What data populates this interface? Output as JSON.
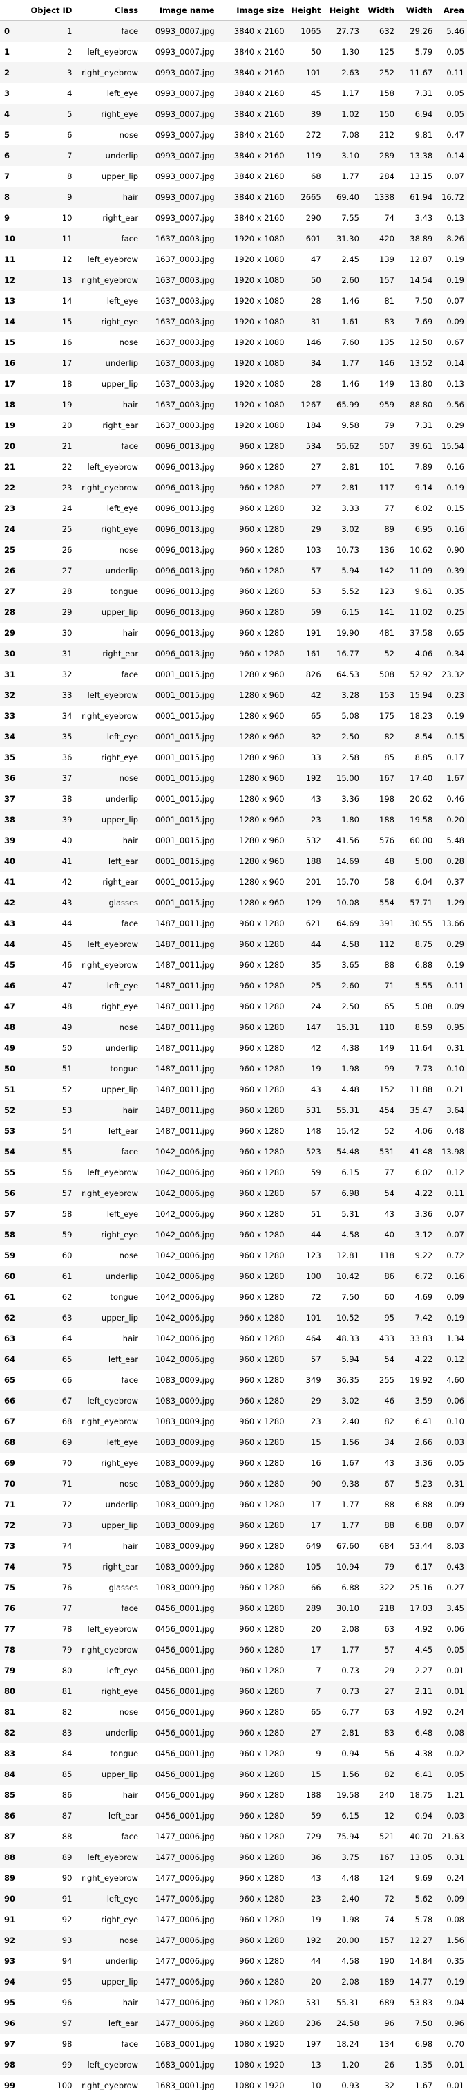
{
  "table": {
    "headers": [
      "",
      "Object ID",
      "Class",
      "Image name",
      "Image size",
      "Height",
      "Height",
      "Width",
      "Width",
      "Area"
    ],
    "rows": [
      [
        "0",
        "1",
        "face",
        "0993_0007.jpg",
        "3840 x 2160",
        "1065",
        "27.73",
        "632",
        "29.26",
        "5.46"
      ],
      [
        "1",
        "2",
        "left_eyebrow",
        "0993_0007.jpg",
        "3840 x 2160",
        "50",
        "1.30",
        "125",
        "5.79",
        "0.05"
      ],
      [
        "2",
        "3",
        "right_eyebrow",
        "0993_0007.jpg",
        "3840 x 2160",
        "101",
        "2.63",
        "252",
        "11.67",
        "0.11"
      ],
      [
        "3",
        "4",
        "left_eye",
        "0993_0007.jpg",
        "3840 x 2160",
        "45",
        "1.17",
        "158",
        "7.31",
        "0.05"
      ],
      [
        "4",
        "5",
        "right_eye",
        "0993_0007.jpg",
        "3840 x 2160",
        "39",
        "1.02",
        "150",
        "6.94",
        "0.05"
      ],
      [
        "5",
        "6",
        "nose",
        "0993_0007.jpg",
        "3840 x 2160",
        "272",
        "7.08",
        "212",
        "9.81",
        "0.47"
      ],
      [
        "6",
        "7",
        "underlip",
        "0993_0007.jpg",
        "3840 x 2160",
        "119",
        "3.10",
        "289",
        "13.38",
        "0.14"
      ],
      [
        "7",
        "8",
        "upper_lip",
        "0993_0007.jpg",
        "3840 x 2160",
        "68",
        "1.77",
        "284",
        "13.15",
        "0.07"
      ],
      [
        "8",
        "9",
        "hair",
        "0993_0007.jpg",
        "3840 x 2160",
        "2665",
        "69.40",
        "1338",
        "61.94",
        "16.72"
      ],
      [
        "9",
        "10",
        "right_ear",
        "0993_0007.jpg",
        "3840 x 2160",
        "290",
        "7.55",
        "74",
        "3.43",
        "0.13"
      ],
      [
        "10",
        "11",
        "face",
        "1637_0003.jpg",
        "1920 x 1080",
        "601",
        "31.30",
        "420",
        "38.89",
        "8.26"
      ],
      [
        "11",
        "12",
        "left_eyebrow",
        "1637_0003.jpg",
        "1920 x 1080",
        "47",
        "2.45",
        "139",
        "12.87",
        "0.19"
      ],
      [
        "12",
        "13",
        "right_eyebrow",
        "1637_0003.jpg",
        "1920 x 1080",
        "50",
        "2.60",
        "157",
        "14.54",
        "0.19"
      ],
      [
        "13",
        "14",
        "left_eye",
        "1637_0003.jpg",
        "1920 x 1080",
        "28",
        "1.46",
        "81",
        "7.50",
        "0.07"
      ],
      [
        "14",
        "15",
        "right_eye",
        "1637_0003.jpg",
        "1920 x 1080",
        "31",
        "1.61",
        "83",
        "7.69",
        "0.09"
      ],
      [
        "15",
        "16",
        "nose",
        "1637_0003.jpg",
        "1920 x 1080",
        "146",
        "7.60",
        "135",
        "12.50",
        "0.67"
      ],
      [
        "16",
        "17",
        "underlip",
        "1637_0003.jpg",
        "1920 x 1080",
        "34",
        "1.77",
        "146",
        "13.52",
        "0.14"
      ],
      [
        "17",
        "18",
        "upper_lip",
        "1637_0003.jpg",
        "1920 x 1080",
        "28",
        "1.46",
        "149",
        "13.80",
        "0.13"
      ],
      [
        "18",
        "19",
        "hair",
        "1637_0003.jpg",
        "1920 x 1080",
        "1267",
        "65.99",
        "959",
        "88.80",
        "9.56"
      ],
      [
        "19",
        "20",
        "right_ear",
        "1637_0003.jpg",
        "1920 x 1080",
        "184",
        "9.58",
        "79",
        "7.31",
        "0.29"
      ],
      [
        "20",
        "21",
        "face",
        "0096_0013.jpg",
        "960 x 1280",
        "534",
        "55.62",
        "507",
        "39.61",
        "15.54"
      ],
      [
        "21",
        "22",
        "left_eyebrow",
        "0096_0013.jpg",
        "960 x 1280",
        "27",
        "2.81",
        "101",
        "7.89",
        "0.16"
      ],
      [
        "22",
        "23",
        "right_eyebrow",
        "0096_0013.jpg",
        "960 x 1280",
        "27",
        "2.81",
        "117",
        "9.14",
        "0.19"
      ],
      [
        "23",
        "24",
        "left_eye",
        "0096_0013.jpg",
        "960 x 1280",
        "32",
        "3.33",
        "77",
        "6.02",
        "0.15"
      ],
      [
        "24",
        "25",
        "right_eye",
        "0096_0013.jpg",
        "960 x 1280",
        "29",
        "3.02",
        "89",
        "6.95",
        "0.16"
      ],
      [
        "25",
        "26",
        "nose",
        "0096_0013.jpg",
        "960 x 1280",
        "103",
        "10.73",
        "136",
        "10.62",
        "0.90"
      ],
      [
        "26",
        "27",
        "underlip",
        "0096_0013.jpg",
        "960 x 1280",
        "57",
        "5.94",
        "142",
        "11.09",
        "0.39"
      ],
      [
        "27",
        "28",
        "tongue",
        "0096_0013.jpg",
        "960 x 1280",
        "53",
        "5.52",
        "123",
        "9.61",
        "0.35"
      ],
      [
        "28",
        "29",
        "upper_lip",
        "0096_0013.jpg",
        "960 x 1280",
        "59",
        "6.15",
        "141",
        "11.02",
        "0.25"
      ],
      [
        "29",
        "30",
        "hair",
        "0096_0013.jpg",
        "960 x 1280",
        "191",
        "19.90",
        "481",
        "37.58",
        "0.65"
      ],
      [
        "30",
        "31",
        "right_ear",
        "0096_0013.jpg",
        "960 x 1280",
        "161",
        "16.77",
        "52",
        "4.06",
        "0.34"
      ],
      [
        "31",
        "32",
        "face",
        "0001_0015.jpg",
        "1280 x 960",
        "826",
        "64.53",
        "508",
        "52.92",
        "23.32"
      ],
      [
        "32",
        "33",
        "left_eyebrow",
        "0001_0015.jpg",
        "1280 x 960",
        "42",
        "3.28",
        "153",
        "15.94",
        "0.23"
      ],
      [
        "33",
        "34",
        "right_eyebrow",
        "0001_0015.jpg",
        "1280 x 960",
        "65",
        "5.08",
        "175",
        "18.23",
        "0.19"
      ],
      [
        "34",
        "35",
        "left_eye",
        "0001_0015.jpg",
        "1280 x 960",
        "32",
        "2.50",
        "82",
        "8.54",
        "0.15"
      ],
      [
        "35",
        "36",
        "right_eye",
        "0001_0015.jpg",
        "1280 x 960",
        "33",
        "2.58",
        "85",
        "8.85",
        "0.17"
      ],
      [
        "36",
        "37",
        "nose",
        "0001_0015.jpg",
        "1280 x 960",
        "192",
        "15.00",
        "167",
        "17.40",
        "1.67"
      ],
      [
        "37",
        "38",
        "underlip",
        "0001_0015.jpg",
        "1280 x 960",
        "43",
        "3.36",
        "198",
        "20.62",
        "0.46"
      ],
      [
        "38",
        "39",
        "upper_lip",
        "0001_0015.jpg",
        "1280 x 960",
        "23",
        "1.80",
        "188",
        "19.58",
        "0.20"
      ],
      [
        "39",
        "40",
        "hair",
        "0001_0015.jpg",
        "1280 x 960",
        "532",
        "41.56",
        "576",
        "60.00",
        "5.48"
      ],
      [
        "40",
        "41",
        "left_ear",
        "0001_0015.jpg",
        "1280 x 960",
        "188",
        "14.69",
        "48",
        "5.00",
        "0.28"
      ],
      [
        "41",
        "42",
        "right_ear",
        "0001_0015.jpg",
        "1280 x 960",
        "201",
        "15.70",
        "58",
        "6.04",
        "0.37"
      ],
      [
        "42",
        "43",
        "glasses",
        "0001_0015.jpg",
        "1280 x 960",
        "129",
        "10.08",
        "554",
        "57.71",
        "1.29"
      ],
      [
        "43",
        "44",
        "face",
        "1487_0011.jpg",
        "960 x 1280",
        "621",
        "64.69",
        "391",
        "30.55",
        "13.66"
      ],
      [
        "44",
        "45",
        "left_eyebrow",
        "1487_0011.jpg",
        "960 x 1280",
        "44",
        "4.58",
        "112",
        "8.75",
        "0.29"
      ],
      [
        "45",
        "46",
        "right_eyebrow",
        "1487_0011.jpg",
        "960 x 1280",
        "35",
        "3.65",
        "88",
        "6.88",
        "0.19"
      ],
      [
        "46",
        "47",
        "left_eye",
        "1487_0011.jpg",
        "960 x 1280",
        "25",
        "2.60",
        "71",
        "5.55",
        "0.11"
      ],
      [
        "47",
        "48",
        "right_eye",
        "1487_0011.jpg",
        "960 x 1280",
        "24",
        "2.50",
        "65",
        "5.08",
        "0.09"
      ],
      [
        "48",
        "49",
        "nose",
        "1487_0011.jpg",
        "960 x 1280",
        "147",
        "15.31",
        "110",
        "8.59",
        "0.95"
      ],
      [
        "49",
        "50",
        "underlip",
        "1487_0011.jpg",
        "960 x 1280",
        "42",
        "4.38",
        "149",
        "11.64",
        "0.31"
      ],
      [
        "50",
        "51",
        "tongue",
        "1487_0011.jpg",
        "960 x 1280",
        "19",
        "1.98",
        "99",
        "7.73",
        "0.10"
      ],
      [
        "51",
        "52",
        "upper_lip",
        "1487_0011.jpg",
        "960 x 1280",
        "43",
        "4.48",
        "152",
        "11.88",
        "0.21"
      ],
      [
        "52",
        "53",
        "hair",
        "1487_0011.jpg",
        "960 x 1280",
        "531",
        "55.31",
        "454",
        "35.47",
        "3.64"
      ],
      [
        "53",
        "54",
        "left_ear",
        "1487_0011.jpg",
        "960 x 1280",
        "148",
        "15.42",
        "52",
        "4.06",
        "0.48"
      ],
      [
        "54",
        "55",
        "face",
        "1042_0006.jpg",
        "960 x 1280",
        "523",
        "54.48",
        "531",
        "41.48",
        "13.98"
      ],
      [
        "55",
        "56",
        "left_eyebrow",
        "1042_0006.jpg",
        "960 x 1280",
        "59",
        "6.15",
        "77",
        "6.02",
        "0.12"
      ],
      [
        "56",
        "57",
        "right_eyebrow",
        "1042_0006.jpg",
        "960 x 1280",
        "67",
        "6.98",
        "54",
        "4.22",
        "0.11"
      ],
      [
        "57",
        "58",
        "left_eye",
        "1042_0006.jpg",
        "960 x 1280",
        "51",
        "5.31",
        "43",
        "3.36",
        "0.07"
      ],
      [
        "58",
        "59",
        "right_eye",
        "1042_0006.jpg",
        "960 x 1280",
        "44",
        "4.58",
        "40",
        "3.12",
        "0.07"
      ],
      [
        "59",
        "60",
        "nose",
        "1042_0006.jpg",
        "960 x 1280",
        "123",
        "12.81",
        "118",
        "9.22",
        "0.72"
      ],
      [
        "60",
        "61",
        "underlip",
        "1042_0006.jpg",
        "960 x 1280",
        "100",
        "10.42",
        "86",
        "6.72",
        "0.16"
      ],
      [
        "61",
        "62",
        "tongue",
        "1042_0006.jpg",
        "960 x 1280",
        "72",
        "7.50",
        "60",
        "4.69",
        "0.09"
      ],
      [
        "62",
        "63",
        "upper_lip",
        "1042_0006.jpg",
        "960 x 1280",
        "101",
        "10.52",
        "95",
        "7.42",
        "0.19"
      ],
      [
        "63",
        "64",
        "hair",
        "1042_0006.jpg",
        "960 x 1280",
        "464",
        "48.33",
        "433",
        "33.83",
        "1.34"
      ],
      [
        "64",
        "65",
        "left_ear",
        "1042_0006.jpg",
        "960 x 1280",
        "57",
        "5.94",
        "54",
        "4.22",
        "0.12"
      ],
      [
        "65",
        "66",
        "face",
        "1083_0009.jpg",
        "960 x 1280",
        "349",
        "36.35",
        "255",
        "19.92",
        "4.60"
      ],
      [
        "66",
        "67",
        "left_eyebrow",
        "1083_0009.jpg",
        "960 x 1280",
        "29",
        "3.02",
        "46",
        "3.59",
        "0.06"
      ],
      [
        "67",
        "68",
        "right_eyebrow",
        "1083_0009.jpg",
        "960 x 1280",
        "23",
        "2.40",
        "82",
        "6.41",
        "0.10"
      ],
      [
        "68",
        "69",
        "left_eye",
        "1083_0009.jpg",
        "960 x 1280",
        "15",
        "1.56",
        "34",
        "2.66",
        "0.03"
      ],
      [
        "69",
        "70",
        "right_eye",
        "1083_0009.jpg",
        "960 x 1280",
        "16",
        "1.67",
        "43",
        "3.36",
        "0.05"
      ],
      [
        "70",
        "71",
        "nose",
        "1083_0009.jpg",
        "960 x 1280",
        "90",
        "9.38",
        "67",
        "5.23",
        "0.31"
      ],
      [
        "71",
        "72",
        "underlip",
        "1083_0009.jpg",
        "960 x 1280",
        "17",
        "1.77",
        "88",
        "6.88",
        "0.09"
      ],
      [
        "72",
        "73",
        "upper_lip",
        "1083_0009.jpg",
        "960 x 1280",
        "17",
        "1.77",
        "88",
        "6.88",
        "0.07"
      ],
      [
        "73",
        "74",
        "hair",
        "1083_0009.jpg",
        "960 x 1280",
        "649",
        "67.60",
        "684",
        "53.44",
        "8.03"
      ],
      [
        "74",
        "75",
        "right_ear",
        "1083_0009.jpg",
        "960 x 1280",
        "105",
        "10.94",
        "79",
        "6.17",
        "0.43"
      ],
      [
        "75",
        "76",
        "glasses",
        "1083_0009.jpg",
        "960 x 1280",
        "66",
        "6.88",
        "322",
        "25.16",
        "0.27"
      ],
      [
        "76",
        "77",
        "face",
        "0456_0001.jpg",
        "960 x 1280",
        "289",
        "30.10",
        "218",
        "17.03",
        "3.45"
      ],
      [
        "77",
        "78",
        "left_eyebrow",
        "0456_0001.jpg",
        "960 x 1280",
        "20",
        "2.08",
        "63",
        "4.92",
        "0.06"
      ],
      [
        "78",
        "79",
        "right_eyebrow",
        "0456_0001.jpg",
        "960 x 1280",
        "17",
        "1.77",
        "57",
        "4.45",
        "0.05"
      ],
      [
        "79",
        "80",
        "left_eye",
        "0456_0001.jpg",
        "960 x 1280",
        "7",
        "0.73",
        "29",
        "2.27",
        "0.01"
      ],
      [
        "80",
        "81",
        "right_eye",
        "0456_0001.jpg",
        "960 x 1280",
        "7",
        "0.73",
        "27",
        "2.11",
        "0.01"
      ],
      [
        "81",
        "82",
        "nose",
        "0456_0001.jpg",
        "960 x 1280",
        "65",
        "6.77",
        "63",
        "4.92",
        "0.24"
      ],
      [
        "82",
        "83",
        "underlip",
        "0456_0001.jpg",
        "960 x 1280",
        "27",
        "2.81",
        "83",
        "6.48",
        "0.08"
      ],
      [
        "83",
        "84",
        "tongue",
        "0456_0001.jpg",
        "960 x 1280",
        "9",
        "0.94",
        "56",
        "4.38",
        "0.02"
      ],
      [
        "84",
        "85",
        "upper_lip",
        "0456_0001.jpg",
        "960 x 1280",
        "15",
        "1.56",
        "82",
        "6.41",
        "0.05"
      ],
      [
        "85",
        "86",
        "hair",
        "0456_0001.jpg",
        "960 x 1280",
        "188",
        "19.58",
        "240",
        "18.75",
        "1.21"
      ],
      [
        "86",
        "87",
        "left_ear",
        "0456_0001.jpg",
        "960 x 1280",
        "59",
        "6.15",
        "12",
        "0.94",
        "0.03"
      ],
      [
        "87",
        "88",
        "face",
        "1477_0006.jpg",
        "960 x 1280",
        "729",
        "75.94",
        "521",
        "40.70",
        "21.63"
      ],
      [
        "88",
        "89",
        "left_eyebrow",
        "1477_0006.jpg",
        "960 x 1280",
        "36",
        "3.75",
        "167",
        "13.05",
        "0.31"
      ],
      [
        "89",
        "90",
        "right_eyebrow",
        "1477_0006.jpg",
        "960 x 1280",
        "43",
        "4.48",
        "124",
        "9.69",
        "0.24"
      ],
      [
        "90",
        "91",
        "left_eye",
        "1477_0006.jpg",
        "960 x 1280",
        "23",
        "2.40",
        "72",
        "5.62",
        "0.09"
      ],
      [
        "91",
        "92",
        "right_eye",
        "1477_0006.jpg",
        "960 x 1280",
        "19",
        "1.98",
        "74",
        "5.78",
        "0.08"
      ],
      [
        "92",
        "93",
        "nose",
        "1477_0006.jpg",
        "960 x 1280",
        "192",
        "20.00",
        "157",
        "12.27",
        "1.56"
      ],
      [
        "93",
        "94",
        "underlip",
        "1477_0006.jpg",
        "960 x 1280",
        "44",
        "4.58",
        "190",
        "14.84",
        "0.35"
      ],
      [
        "94",
        "95",
        "upper_lip",
        "1477_0006.jpg",
        "960 x 1280",
        "20",
        "2.08",
        "189",
        "14.77",
        "0.19"
      ],
      [
        "95",
        "96",
        "hair",
        "1477_0006.jpg",
        "960 x 1280",
        "531",
        "55.31",
        "689",
        "53.83",
        "9.04"
      ],
      [
        "96",
        "97",
        "left_ear",
        "1477_0006.jpg",
        "960 x 1280",
        "236",
        "24.58",
        "96",
        "7.50",
        "0.96"
      ],
      [
        "97",
        "98",
        "face",
        "1683_0001.jpg",
        "1080 x 1920",
        "197",
        "18.24",
        "134",
        "6.98",
        "0.70"
      ],
      [
        "98",
        "99",
        "left_eyebrow",
        "1683_0001.jpg",
        "1080 x 1920",
        "13",
        "1.20",
        "26",
        "1.35",
        "0.01"
      ],
      [
        "99",
        "100",
        "right_eyebrow",
        "1683_0001.jpg",
        "1080 x 1920",
        "10",
        "0.93",
        "32",
        "1.67",
        "0.01"
      ]
    ]
  }
}
